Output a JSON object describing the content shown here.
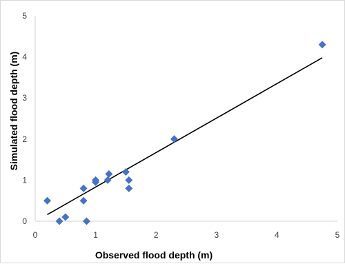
{
  "chart_data": {
    "type": "scatter",
    "xlabel": "Observed flood depth (m)",
    "ylabel": "Simulated flood depth (m)",
    "xlim": [
      0,
      5
    ],
    "ylim": [
      0,
      5
    ],
    "xticks": [
      "0",
      "1",
      "2",
      "3",
      "4",
      "5"
    ],
    "yticks": [
      "0",
      "1",
      "2",
      "3",
      "4",
      "5"
    ],
    "grid": false,
    "legend": "none",
    "marker": "diamond",
    "marker_color": "#4472c4",
    "trendline": {
      "type": "linear",
      "from": [
        0.2,
        0.16
      ],
      "to": [
        4.75,
        3.98
      ]
    },
    "series": [
      {
        "points": [
          [
            0.2,
            0.5
          ],
          [
            0.4,
            0.0
          ],
          [
            0.5,
            0.1
          ],
          [
            0.8,
            0.8
          ],
          [
            0.8,
            0.5
          ],
          [
            0.85,
            0.0
          ],
          [
            1.0,
            0.95
          ],
          [
            1.0,
            1.0
          ],
          [
            1.2,
            1.0
          ],
          [
            1.22,
            1.15
          ],
          [
            1.5,
            1.2
          ],
          [
            1.55,
            1.0
          ],
          [
            1.55,
            0.8
          ],
          [
            2.3,
            2.0
          ],
          [
            4.75,
            4.3
          ]
        ]
      }
    ]
  }
}
